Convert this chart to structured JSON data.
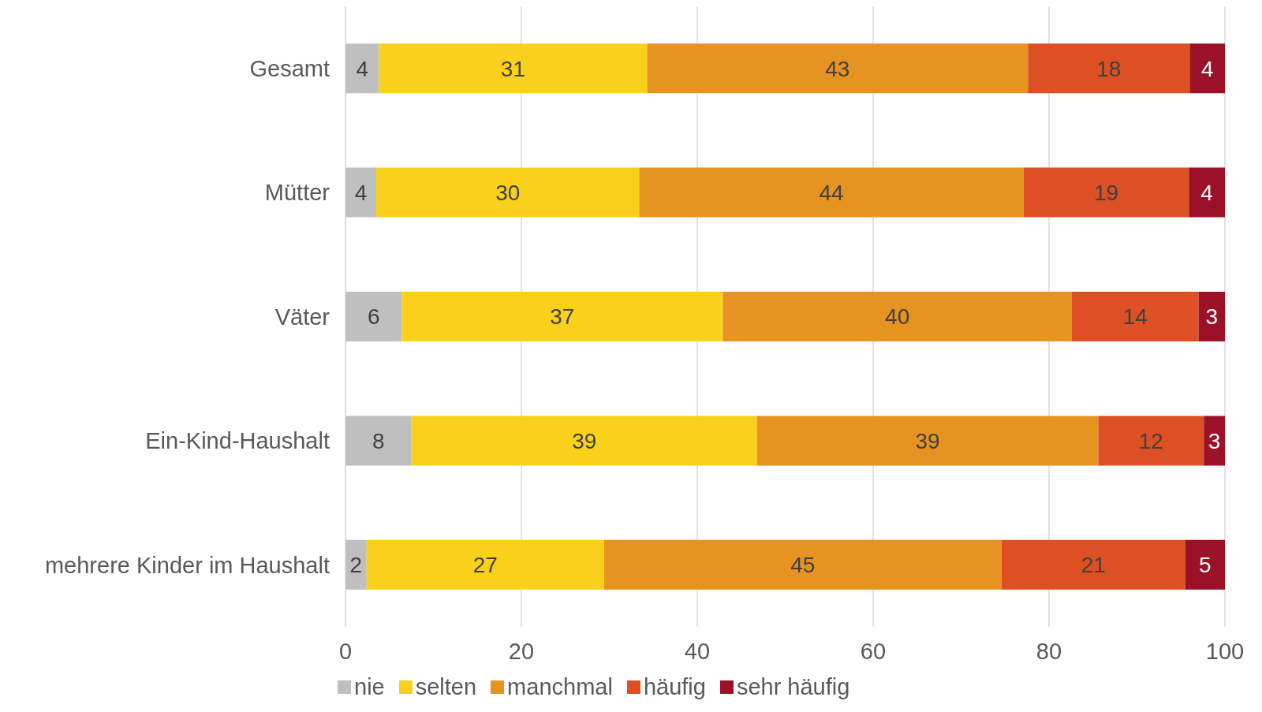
{
  "chart_data": {
    "type": "bar",
    "orientation": "horizontal",
    "stacked": true,
    "categories": [
      "Gesamt",
      "Mütter",
      "Väter",
      "Ein-Kind-Haushalt",
      "mehrere Kinder im Haushalt"
    ],
    "series": [
      {
        "name": "nie",
        "color": "#bfbfbf",
        "values": [
          3.8,
          3.5,
          6.4,
          7.5,
          2.4
        ],
        "value_labels": [
          "4",
          "4",
          "6",
          "8",
          "2"
        ]
      },
      {
        "name": "selten",
        "color": "#f9d11a",
        "values": [
          30.5,
          29.9,
          36.5,
          39.3,
          27.0
        ],
        "value_labels": [
          "31",
          "30",
          "37",
          "39",
          "27"
        ]
      },
      {
        "name": "manchmal",
        "color": "#e69322",
        "values": [
          43.3,
          43.7,
          39.7,
          38.8,
          45.2
        ],
        "value_labels": [
          "43",
          "44",
          "40",
          "39",
          "45"
        ]
      },
      {
        "name": "häufig",
        "color": "#dd5023",
        "values": [
          18.4,
          18.8,
          14.4,
          12.0,
          20.9
        ],
        "value_labels": [
          "18",
          "19",
          "14",
          "12",
          "21"
        ]
      },
      {
        "name": "sehr häufig",
        "color": "#9b1127",
        "values": [
          4.0,
          4.1,
          3.0,
          2.5,
          4.5
        ],
        "value_labels": [
          "4",
          "4",
          "3",
          "3",
          "5"
        ]
      }
    ],
    "xlim": [
      0,
      100
    ],
    "xticks": [
      0,
      20,
      40,
      60,
      80,
      100
    ],
    "grid": "x",
    "legend": "bottom"
  }
}
